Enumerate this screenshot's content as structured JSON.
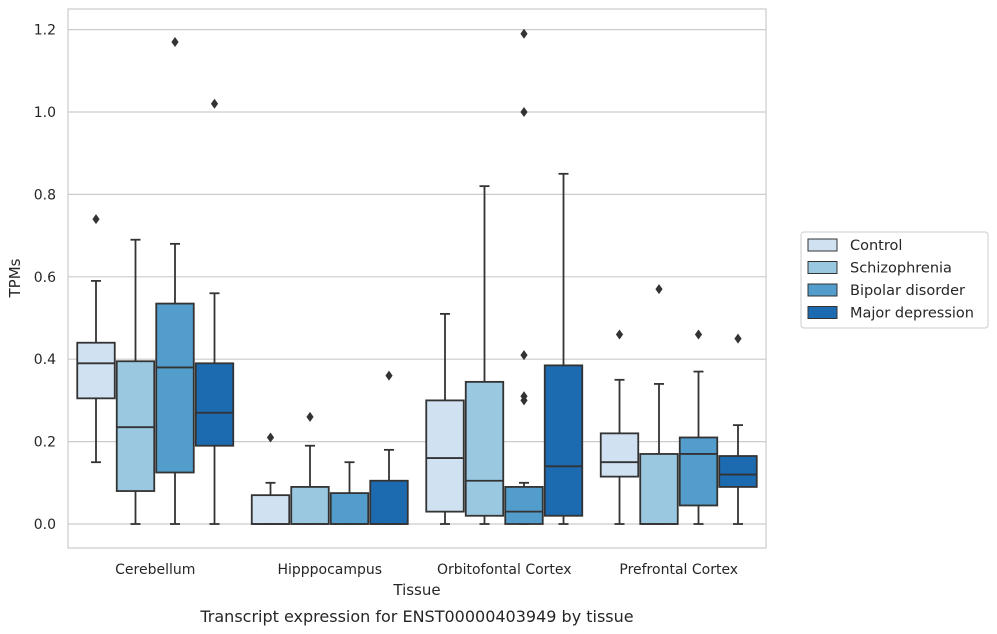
{
  "chart_data": {
    "type": "box",
    "title": "",
    "caption": "Transcript expression for ENST00000403949 by tissue",
    "xlabel": "Tissue",
    "ylabel": "TPMs",
    "ylim": [
      -0.058,
      1.25
    ],
    "yticks": [
      0.0,
      0.2,
      0.4,
      0.6,
      0.8,
      1.0,
      1.2
    ],
    "ytick_labels": [
      "0.0",
      "0.2",
      "0.4",
      "0.6",
      "0.8",
      "1.0",
      "1.2"
    ],
    "grid": "horizontal",
    "legend_position": "right, outside",
    "categories": [
      "Cerebellum",
      "Hipppocampus",
      "Orbitofontal Cortex",
      "Prefrontal Cortex"
    ],
    "series": [
      {
        "name": "Control",
        "color": "#d0e1f2",
        "boxes": [
          {
            "whisker_low": 0.15,
            "q1": 0.305,
            "median": 0.39,
            "q3": 0.44,
            "whisker_high": 0.59,
            "outliers": [
              0.74
            ]
          },
          {
            "whisker_low": 0.0,
            "q1": 0.0,
            "median": 0.0,
            "q3": 0.07,
            "whisker_high": 0.1,
            "outliers": [
              0.21
            ]
          },
          {
            "whisker_low": 0.0,
            "q1": 0.03,
            "median": 0.16,
            "q3": 0.3,
            "whisker_high": 0.51,
            "outliers": []
          },
          {
            "whisker_low": 0.0,
            "q1": 0.115,
            "median": 0.15,
            "q3": 0.22,
            "whisker_high": 0.35,
            "outliers": [
              0.46
            ]
          }
        ]
      },
      {
        "name": "Schizophrenia",
        "color": "#9ac8e0",
        "boxes": [
          {
            "whisker_low": 0.0,
            "q1": 0.08,
            "median": 0.235,
            "q3": 0.395,
            "whisker_high": 0.69,
            "outliers": []
          },
          {
            "whisker_low": 0.0,
            "q1": 0.0,
            "median": 0.0,
            "q3": 0.09,
            "whisker_high": 0.19,
            "outliers": [
              0.26
            ]
          },
          {
            "whisker_low": 0.0,
            "q1": 0.02,
            "median": 0.105,
            "q3": 0.345,
            "whisker_high": 0.82,
            "outliers": []
          },
          {
            "whisker_low": 0.0,
            "q1": 0.0,
            "median": 0.0,
            "q3": 0.17,
            "whisker_high": 0.34,
            "outliers": [
              0.57
            ]
          }
        ]
      },
      {
        "name": "Bipolar disorder",
        "color": "#529dcc",
        "boxes": [
          {
            "whisker_low": 0.0,
            "q1": 0.125,
            "median": 0.38,
            "q3": 0.535,
            "whisker_high": 0.68,
            "outliers": [
              1.17
            ]
          },
          {
            "whisker_low": 0.0,
            "q1": 0.0,
            "median": 0.0,
            "q3": 0.075,
            "whisker_high": 0.15,
            "outliers": []
          },
          {
            "whisker_low": 0.0,
            "q1": 0.0,
            "median": 0.03,
            "q3": 0.09,
            "whisker_high": 0.1,
            "outliers": [
              0.3,
              0.31,
              0.41,
              1.0,
              1.19
            ]
          },
          {
            "whisker_low": 0.0,
            "q1": 0.045,
            "median": 0.17,
            "q3": 0.21,
            "whisker_high": 0.37,
            "outliers": [
              0.46
            ]
          }
        ]
      },
      {
        "name": "Major depression",
        "color": "#1c6aaf",
        "boxes": [
          {
            "whisker_low": 0.0,
            "q1": 0.19,
            "median": 0.27,
            "q3": 0.39,
            "whisker_high": 0.56,
            "outliers": [
              1.02
            ]
          },
          {
            "whisker_low": 0.0,
            "q1": 0.0,
            "median": 0.0,
            "q3": 0.105,
            "whisker_high": 0.18,
            "outliers": [
              0.36
            ]
          },
          {
            "whisker_low": 0.0,
            "q1": 0.02,
            "median": 0.14,
            "q3": 0.385,
            "whisker_high": 0.85,
            "outliers": []
          },
          {
            "whisker_low": 0.0,
            "q1": 0.09,
            "median": 0.12,
            "q3": 0.165,
            "whisker_high": 0.24,
            "outliers": [
              0.45
            ]
          }
        ]
      }
    ]
  }
}
